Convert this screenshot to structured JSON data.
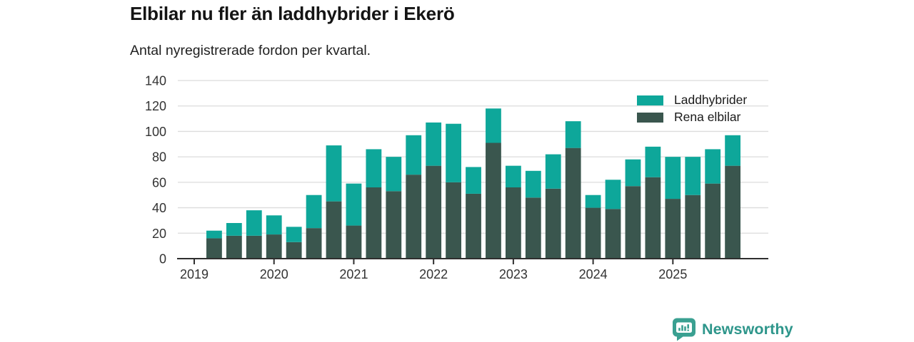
{
  "title": "Elbilar nu fler än laddhybrider i Ekerö",
  "subtitle": "Antal nyregistrerade fordon per kvartal.",
  "legend": {
    "items": [
      {
        "label": "Laddhybrider",
        "color": "#0ea79a"
      },
      {
        "label": "Rena elbilar",
        "color": "#3a564e"
      }
    ]
  },
  "branding": {
    "name": "Newsworthy",
    "color": "#2e968b",
    "icon": "newsworthy-bubble-chart-icon",
    "icon_color": "#3aa091"
  },
  "colors": {
    "laddhybrider": "#0ea79a",
    "rena_elbilar": "#3a564e",
    "gridline": "#dcdcdc",
    "axis": "#2f2f2f",
    "tick_label": "#333333"
  },
  "chart_data": {
    "type": "bar",
    "stacked": true,
    "title": "Elbilar nu fler än laddhybrider i Ekerö",
    "subtitle": "Antal nyregistrerade fordon per kvartal.",
    "xlabel": "",
    "ylabel": "",
    "ylim": [
      0,
      140
    ],
    "yticks": [
      0,
      20,
      40,
      60,
      80,
      100,
      120,
      140
    ],
    "grid": true,
    "legend_position": "top-right",
    "x_tick_years": [
      "2019",
      "2020",
      "2021",
      "2022",
      "2023",
      "2024",
      "2025"
    ],
    "x": [
      "2019 Q1",
      "2019 Q2",
      "2019 Q3",
      "2019 Q4",
      "2020 Q1",
      "2020 Q2",
      "2020 Q3",
      "2020 Q4",
      "2021 Q1",
      "2021 Q2",
      "2021 Q3",
      "2021 Q4",
      "2022 Q1",
      "2022 Q2",
      "2022 Q3",
      "2022 Q4",
      "2023 Q1",
      "2023 Q2",
      "2023 Q3",
      "2023 Q4",
      "2024 Q1",
      "2024 Q2",
      "2024 Q3",
      "2024 Q4",
      "2025 Q1",
      "2025 Q2",
      "2025 Q3",
      "2025 Q4"
    ],
    "stack_order_bottom_to_top": [
      "Rena elbilar",
      "Laddhybrider"
    ],
    "series": [
      {
        "name": "Laddhybrider",
        "color": "#0ea79a",
        "values": [
          0,
          6,
          10,
          20,
          15,
          12,
          26,
          44,
          33,
          30,
          27,
          31,
          34,
          46,
          21,
          27,
          17,
          21,
          27,
          21,
          10,
          23,
          21,
          24,
          33,
          30,
          27,
          24
        ]
      },
      {
        "name": "Rena elbilar",
        "color": "#3a564e",
        "values": [
          0,
          16,
          18,
          18,
          19,
          13,
          24,
          45,
          26,
          56,
          53,
          66,
          73,
          60,
          51,
          91,
          56,
          48,
          55,
          87,
          40,
          39,
          57,
          64,
          47,
          50,
          59,
          73
        ]
      }
    ],
    "stacked_totals": [
      0,
      22,
      28,
      38,
      34,
      25,
      50,
      89,
      59,
      86,
      80,
      97,
      107,
      106,
      72,
      118,
      73,
      69,
      82,
      108,
      50,
      62,
      78,
      88,
      80,
      80,
      86,
      97
    ]
  }
}
